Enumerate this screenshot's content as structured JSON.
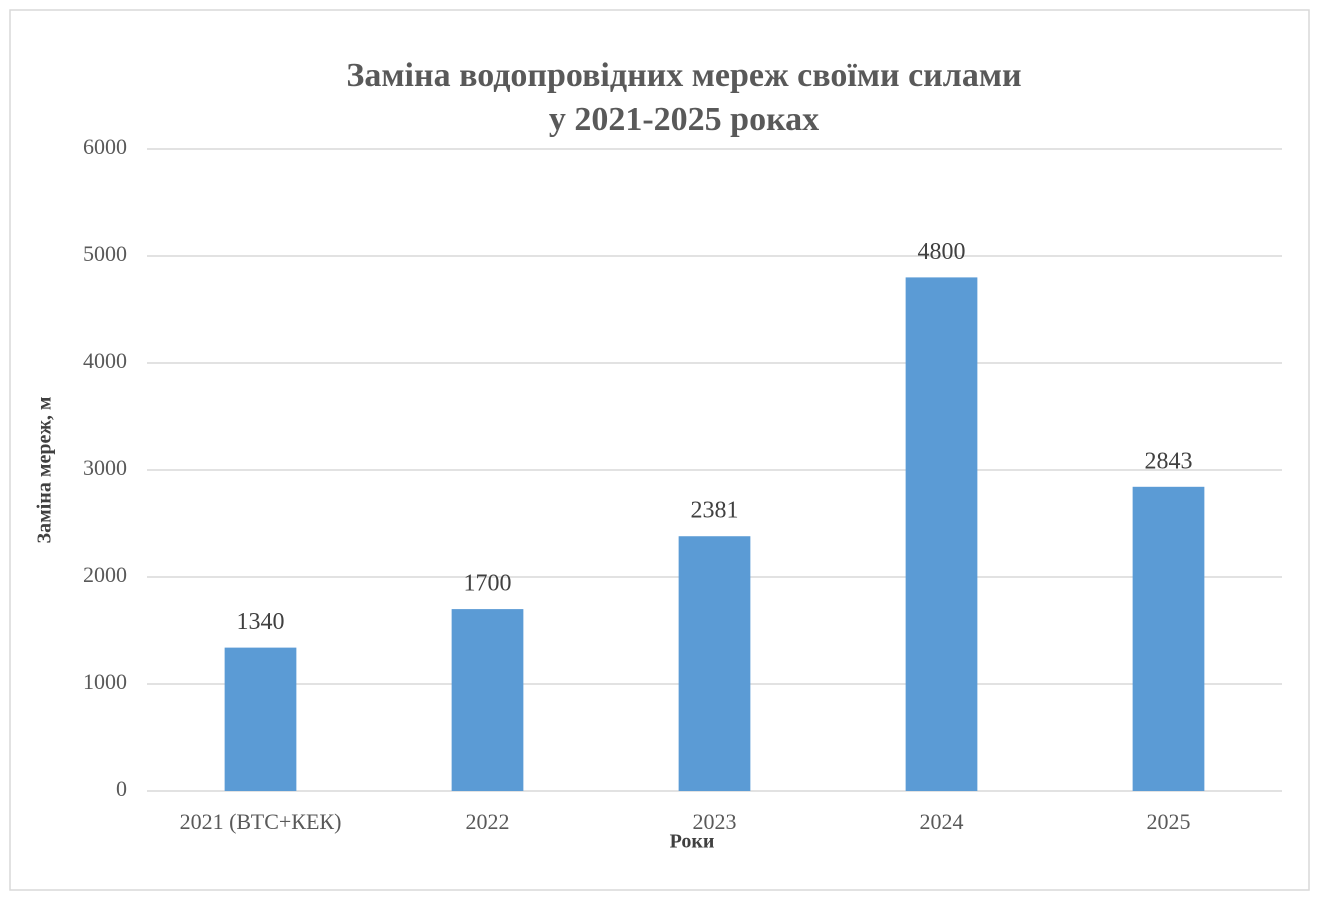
{
  "chart_data": {
    "type": "bar",
    "title": [
      "Заміна водопровідних мереж своїми силами",
      "у 2021-2025 роках"
    ],
    "x_label": "Роки",
    "y_label": "Заміна мереж, м",
    "categories": [
      "2021 (ВТС+КЕК)",
      "2022",
      "2023",
      "2024",
      "2025"
    ],
    "values": [
      1340,
      1700,
      2381,
      4800,
      2843
    ],
    "color": "#5b9bd5",
    "ylim": [
      0,
      6000
    ],
    "yticks": [
      0,
      1000,
      2000,
      3000,
      4000,
      5000,
      6000
    ],
    "grid": true,
    "data_labels": true
  }
}
